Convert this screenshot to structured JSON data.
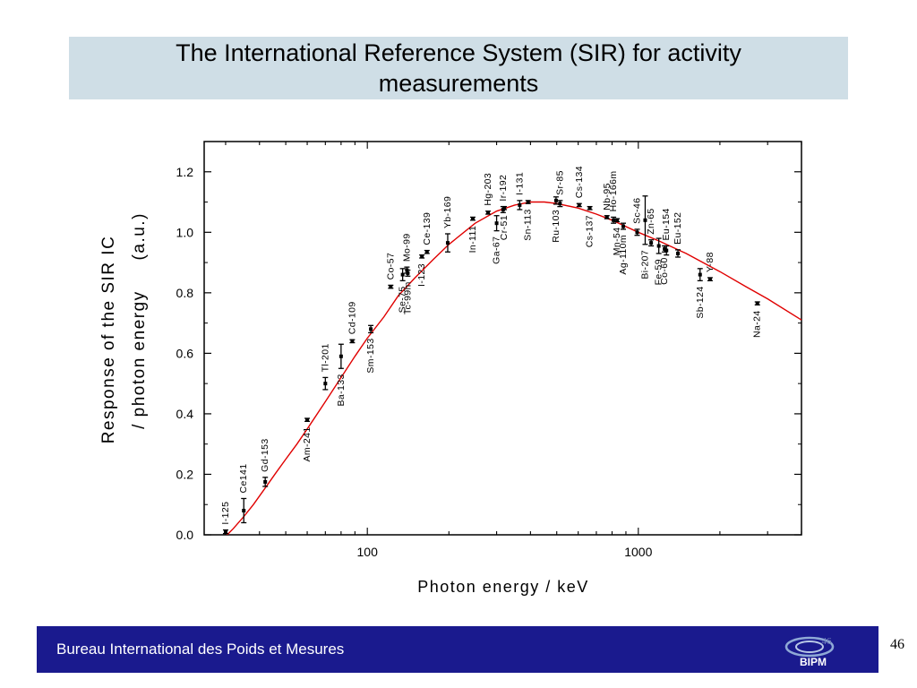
{
  "slide": {
    "title": "The International Reference System (SIR) for activity measurements",
    "footer_org": "Bureau International des Poids et Mesures",
    "page_number": "46",
    "footer_faint_number": "46",
    "logo_text": "BIPM",
    "colors": {
      "title_bg": "#cfdee6",
      "footer_bg": "#1a1a8e",
      "curve": "#e00000"
    }
  },
  "chart_data": {
    "type": "scatter",
    "title": "",
    "xlabel": "Photon energy  / keV",
    "ylabel_line1": "Response of the SIR IC",
    "ylabel_line2": "/ photon energy     (a.u.)",
    "x_scale": "log",
    "xlim": [
      25,
      4000
    ],
    "ylim": [
      0.0,
      1.3
    ],
    "x_ticks": [
      {
        "value": 100,
        "label": "100"
      },
      {
        "value": 1000,
        "label": "1000"
      }
    ],
    "y_ticks": [
      {
        "value": 0.0,
        "label": "0.0"
      },
      {
        "value": 0.2,
        "label": "0.2"
      },
      {
        "value": 0.4,
        "label": "0.4"
      },
      {
        "value": 0.6,
        "label": "0.6"
      },
      {
        "value": 0.8,
        "label": "0.8"
      },
      {
        "value": 1.0,
        "label": "1.0"
      },
      {
        "value": 1.2,
        "label": "1.2"
      }
    ],
    "grid": false,
    "legend": "none",
    "fit_curve": {
      "name": "",
      "x": [
        28,
        30,
        32,
        35,
        38,
        42,
        46,
        50,
        55,
        60,
        70,
        80,
        90,
        100,
        115,
        130,
        150,
        175,
        200,
        250,
        300,
        350,
        400,
        450,
        500,
        600,
        700,
        800,
        1000,
        1200,
        1500,
        2000,
        2500,
        3000,
        4000
      ],
      "y": [
        -0.03,
        -0.005,
        0.02,
        0.06,
        0.1,
        0.155,
        0.205,
        0.25,
        0.3,
        0.35,
        0.44,
        0.52,
        0.59,
        0.65,
        0.72,
        0.79,
        0.85,
        0.91,
        0.96,
        1.03,
        1.07,
        1.09,
        1.1,
        1.1,
        1.095,
        1.08,
        1.06,
        1.04,
        1.0,
        0.97,
        0.93,
        0.87,
        0.82,
        0.78,
        0.71
      ]
    },
    "points": [
      {
        "label": "I-125",
        "x": 30,
        "y": 0.01,
        "err": 0.006
      },
      {
        "label": "Ce141",
        "x": 35,
        "y": 0.08,
        "err": 0.04
      },
      {
        "label": "Gd-153",
        "x": 42,
        "y": 0.175,
        "err": 0.015
      },
      {
        "label": "Am-241",
        "x": 60,
        "y": 0.38,
        "err": 0.005
      },
      {
        "label": "Tl-201",
        "x": 70,
        "y": 0.5,
        "err": 0.02
      },
      {
        "label": "Ba-133",
        "x": 80,
        "y": 0.59,
        "err": 0.04
      },
      {
        "label": "Cd-109",
        "x": 88,
        "y": 0.64,
        "err": 0.005
      },
      {
        "label": "Sm-153",
        "x": 103,
        "y": 0.68,
        "err": 0.012
      },
      {
        "label": "Co-57",
        "x": 122,
        "y": 0.82,
        "err": 0.005
      },
      {
        "label": "Se-75",
        "x": 135,
        "y": 0.86,
        "err": 0.02
      },
      {
        "label": "Mo-99",
        "x": 140,
        "y": 0.875,
        "err": 0.01
      },
      {
        "label": "Tc-99m",
        "x": 141,
        "y": 0.865,
        "err": 0.01
      },
      {
        "label": "Ce-139",
        "x": 166,
        "y": 0.935,
        "err": 0.005
      },
      {
        "label": "I-123",
        "x": 159,
        "y": 0.92,
        "err": 0.005
      },
      {
        "label": "Yb-169",
        "x": 198,
        "y": 0.965,
        "err": 0.03
      },
      {
        "label": "In-111",
        "x": 245,
        "y": 1.045,
        "err": 0.005
      },
      {
        "label": "Hg-203",
        "x": 279,
        "y": 1.065,
        "err": 0.005
      },
      {
        "label": "Ga-67",
        "x": 300,
        "y": 1.03,
        "err": 0.025
      },
      {
        "label": "Ir-192",
        "x": 317,
        "y": 1.075,
        "err": 0.01
      },
      {
        "label": "Cr-51",
        "x": 320,
        "y": 1.08,
        "err": 0.005
      },
      {
        "label": "I-131",
        "x": 365,
        "y": 1.09,
        "err": 0.015
      },
      {
        "label": "Sn-113",
        "x": 392,
        "y": 1.1,
        "err": 0.005
      },
      {
        "label": "Sr-85",
        "x": 514,
        "y": 1.095,
        "err": 0.01
      },
      {
        "label": "Ru-103",
        "x": 497,
        "y": 1.105,
        "err": 0.012
      },
      {
        "label": "Cs-134",
        "x": 605,
        "y": 1.09,
        "err": 0.005
      },
      {
        "label": "Cs-137",
        "x": 662,
        "y": 1.08,
        "err": 0.005
      },
      {
        "label": "Nb-95",
        "x": 766,
        "y": 1.05,
        "err": 0.005
      },
      {
        "label": "Mn-54",
        "x": 835,
        "y": 1.04,
        "err": 0.005
      },
      {
        "label": "Ho-166m",
        "x": 810,
        "y": 1.04,
        "err": 0.01
      },
      {
        "label": "Ag-110m",
        "x": 880,
        "y": 1.02,
        "err": 0.01
      },
      {
        "label": "Sc-46",
        "x": 990,
        "y": 1.0,
        "err": 0.01
      },
      {
        "label": "Bi-207",
        "x": 1060,
        "y": 1.04,
        "err": 0.08
      },
      {
        "label": "Zn-65",
        "x": 1115,
        "y": 0.965,
        "err": 0.01
      },
      {
        "label": "Fe-59",
        "x": 1190,
        "y": 0.955,
        "err": 0.025
      },
      {
        "label": "Eu-154",
        "x": 1270,
        "y": 0.94,
        "err": 0.015
      },
      {
        "label": "Co-60",
        "x": 1250,
        "y": 0.945,
        "err": 0.01
      },
      {
        "label": "Eu-152",
        "x": 1400,
        "y": 0.93,
        "err": 0.012
      },
      {
        "label": "Sb-124",
        "x": 1690,
        "y": 0.86,
        "err": 0.02
      },
      {
        "label": "Y-88",
        "x": 1840,
        "y": 0.845,
        "err": 0.005
      },
      {
        "label": "Na-24",
        "x": 2750,
        "y": 0.765,
        "err": 0.005
      }
    ]
  }
}
